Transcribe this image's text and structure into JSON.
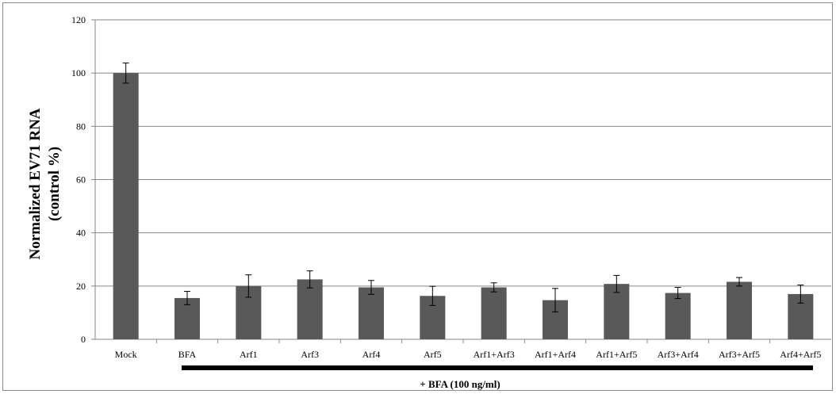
{
  "chart_data": {
    "type": "bar",
    "categories": [
      "Mock",
      "BFA",
      "Arf1",
      "Arf3",
      "Arf4",
      "Arf5",
      "Arf1+Arf3",
      "Arf1+Arf4",
      "Arf1+Arf5",
      "Arf3+Arf4",
      "Arf3+Arf5",
      "Arf4+Arf5"
    ],
    "values": [
      100,
      15.5,
      20,
      22.5,
      19.5,
      16.3,
      19.5,
      14.7,
      20.8,
      17.4,
      21.6,
      17
    ],
    "errors": [
      3.8,
      2.5,
      4.2,
      3.2,
      2.6,
      3.6,
      1.7,
      4.4,
      3.2,
      2.1,
      1.6,
      3.4
    ],
    "ylabel_line1": "Normalized EV71 RNA",
    "ylabel_line2": "(control %)",
    "ylim": [
      0,
      120
    ],
    "yticks": [
      0,
      20,
      40,
      60,
      80,
      100,
      120
    ],
    "grid": true,
    "bar_color": "#595959",
    "treatment_label": "+ BFA (100 ng/ml)"
  }
}
